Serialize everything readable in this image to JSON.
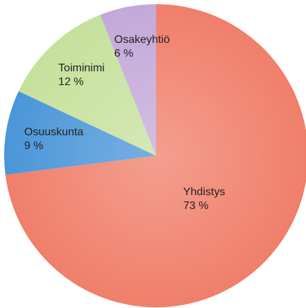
{
  "chart_data": {
    "type": "pie",
    "categories": [
      "Yhdistys",
      "Osuuskunta",
      "Toiminimi",
      "Osakeyhtiö"
    ],
    "values": [
      73,
      9,
      12,
      6
    ],
    "value_labels": [
      "73 %",
      "9 %",
      "12 %",
      "6 %"
    ],
    "colors": [
      "#f07f6a",
      "#4a96d8",
      "#c6e19c",
      "#c3a9d8"
    ]
  }
}
